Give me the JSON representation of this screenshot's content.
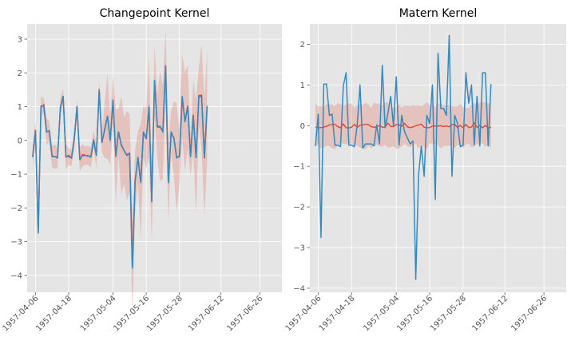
{
  "chart_data": [
    {
      "type": "line",
      "title": "Changepoint Kernel",
      "xlabel": "",
      "ylabel": "",
      "x_range": [
        "1957-04-03",
        "1957-07-04"
      ],
      "ylim": [
        -4.5,
        3.45
      ],
      "yticks": [
        -4,
        -3,
        -2,
        -1,
        0,
        1,
        2,
        3
      ],
      "xticks": [
        "1957-04-06",
        "1957-04-18",
        "1957-05-04",
        "1957-05-16",
        "1957-05-28",
        "1957-06-12",
        "1957-06-26"
      ],
      "grid": true,
      "colors": {
        "observed": "#348abd",
        "mean": "#e24a33",
        "band": "#e24a33"
      },
      "series": [
        {
          "role": "observed",
          "points": [
            [
              "1957-04-05",
              -0.5
            ],
            [
              "1957-04-06",
              0.28
            ],
            [
              "1957-04-07",
              -2.75
            ],
            [
              "1957-04-08",
              1.02
            ],
            [
              "1957-04-09",
              1.02
            ],
            [
              "1957-04-10",
              0.25
            ],
            [
              "1957-04-11",
              0.28
            ],
            [
              "1957-04-12",
              -0.48
            ],
            [
              "1957-04-13",
              -0.48
            ],
            [
              "1957-04-14",
              -0.52
            ],
            [
              "1957-04-15",
              0.98
            ],
            [
              "1957-04-16",
              1.3
            ],
            [
              "1957-04-17",
              -0.48
            ],
            [
              "1957-04-18",
              -0.48
            ],
            [
              "1957-04-19",
              -0.52
            ],
            [
              "1957-04-20",
              0.02
            ],
            [
              "1957-04-21",
              1.0
            ],
            [
              "1957-04-22",
              -0.55
            ],
            [
              "1957-04-23",
              -0.45
            ],
            [
              "1957-04-24",
              -0.45
            ],
            [
              "1957-04-25",
              -0.45
            ],
            [
              "1957-04-26",
              -0.5
            ],
            [
              "1957-04-27",
              0.02
            ],
            [
              "1957-04-28",
              -0.45
            ],
            [
              "1957-04-29",
              1.48
            ],
            [
              "1957-04-30",
              -0.05
            ],
            [
              "1957-05-01",
              0.3
            ],
            [
              "1957-05-02",
              0.72
            ],
            [
              "1957-05-03",
              0.0
            ],
            [
              "1957-05-04",
              1.2
            ],
            [
              "1957-05-05",
              -0.48
            ],
            [
              "1957-05-06",
              0.25
            ],
            [
              "1957-05-07",
              -0.15
            ],
            [
              "1957-05-08",
              -0.3
            ],
            [
              "1957-05-09",
              -0.45
            ],
            [
              "1957-05-10",
              -0.38
            ],
            [
              "1957-05-11",
              -3.78
            ],
            [
              "1957-05-12",
              -1.22
            ],
            [
              "1957-05-13",
              -0.5
            ],
            [
              "1957-05-14",
              -1.25
            ],
            [
              "1957-05-15",
              0.25
            ],
            [
              "1957-05-16",
              0.05
            ],
            [
              "1957-05-17",
              1.0
            ],
            [
              "1957-05-18",
              -1.82
            ],
            [
              "1957-05-19",
              1.78
            ],
            [
              "1957-05-20",
              0.42
            ],
            [
              "1957-05-21",
              0.42
            ],
            [
              "1957-05-22",
              0.25
            ],
            [
              "1957-05-23",
              2.22
            ],
            [
              "1957-05-24",
              -1.25
            ],
            [
              "1957-05-25",
              0.25
            ],
            [
              "1957-05-26",
              0.05
            ],
            [
              "1957-05-27",
              -0.52
            ],
            [
              "1957-05-28",
              -0.48
            ],
            [
              "1957-05-29",
              1.3
            ],
            [
              "1957-05-30",
              0.55
            ],
            [
              "1957-05-31",
              1.0
            ],
            [
              "1957-06-01",
              -0.48
            ],
            [
              "1957-06-02",
              0.72
            ],
            [
              "1957-06-03",
              -0.5
            ],
            [
              "1957-06-04",
              1.3
            ],
            [
              "1957-06-05",
              1.3
            ],
            [
              "1957-06-06",
              -0.5
            ],
            [
              "1957-06-07",
              1.02
            ]
          ]
        }
      ]
    },
    {
      "type": "line",
      "title": "Matern Kernel",
      "xlabel": "",
      "ylabel": "",
      "x_range": [
        "1957-04-03",
        "1957-07-04"
      ],
      "ylim": [
        -4.1,
        2.5
      ],
      "yticks": [
        -4,
        -3,
        -2,
        -1,
        0,
        1,
        2
      ],
      "xticks": [
        "1957-04-06",
        "1957-04-18",
        "1957-05-04",
        "1957-05-16",
        "1957-05-28",
        "1957-06-12",
        "1957-06-26"
      ],
      "grid": true,
      "colors": {
        "observed": "#348abd",
        "mean": "#e24a33",
        "band": "#e24a33"
      },
      "band": [
        -0.58,
        0.58
      ],
      "series": [
        {
          "role": "observed",
          "points": [
            [
              "1957-04-05",
              -0.5
            ],
            [
              "1957-04-06",
              0.28
            ],
            [
              "1957-04-07",
              -2.75
            ],
            [
              "1957-04-08",
              1.02
            ],
            [
              "1957-04-09",
              1.02
            ],
            [
              "1957-04-10",
              0.25
            ],
            [
              "1957-04-11",
              0.28
            ],
            [
              "1957-04-12",
              -0.48
            ],
            [
              "1957-04-13",
              -0.48
            ],
            [
              "1957-04-14",
              -0.52
            ],
            [
              "1957-04-15",
              0.98
            ],
            [
              "1957-04-16",
              1.3
            ],
            [
              "1957-04-17",
              -0.48
            ],
            [
              "1957-04-18",
              -0.48
            ],
            [
              "1957-04-19",
              -0.52
            ],
            [
              "1957-04-20",
              0.02
            ],
            [
              "1957-04-21",
              1.0
            ],
            [
              "1957-04-22",
              -0.55
            ],
            [
              "1957-04-23",
              -0.45
            ],
            [
              "1957-04-24",
              -0.45
            ],
            [
              "1957-04-25",
              -0.45
            ],
            [
              "1957-04-26",
              -0.5
            ],
            [
              "1957-04-27",
              0.02
            ],
            [
              "1957-04-28",
              -0.45
            ],
            [
              "1957-04-29",
              1.48
            ],
            [
              "1957-04-30",
              -0.05
            ],
            [
              "1957-05-01",
              0.3
            ],
            [
              "1957-05-02",
              0.72
            ],
            [
              "1957-05-03",
              0.0
            ],
            [
              "1957-05-04",
              1.2
            ],
            [
              "1957-05-05",
              -0.48
            ],
            [
              "1957-05-06",
              0.25
            ],
            [
              "1957-05-07",
              -0.15
            ],
            [
              "1957-05-08",
              -0.3
            ],
            [
              "1957-05-09",
              -0.45
            ],
            [
              "1957-05-10",
              -0.38
            ],
            [
              "1957-05-11",
              -3.78
            ],
            [
              "1957-05-12",
              -1.22
            ],
            [
              "1957-05-13",
              -0.5
            ],
            [
              "1957-05-14",
              -1.25
            ],
            [
              "1957-05-15",
              0.25
            ],
            [
              "1957-05-16",
              0.05
            ],
            [
              "1957-05-17",
              1.0
            ],
            [
              "1957-05-18",
              -1.82
            ],
            [
              "1957-05-19",
              1.78
            ],
            [
              "1957-05-20",
              0.42
            ],
            [
              "1957-05-21",
              0.42
            ],
            [
              "1957-05-22",
              0.25
            ],
            [
              "1957-05-23",
              2.22
            ],
            [
              "1957-05-24",
              -1.25
            ],
            [
              "1957-05-25",
              0.25
            ],
            [
              "1957-05-26",
              0.05
            ],
            [
              "1957-05-27",
              -0.52
            ],
            [
              "1957-05-28",
              -0.48
            ],
            [
              "1957-05-29",
              1.3
            ],
            [
              "1957-05-30",
              0.55
            ],
            [
              "1957-05-31",
              1.0
            ],
            [
              "1957-06-01",
              -0.48
            ],
            [
              "1957-06-02",
              0.72
            ],
            [
              "1957-06-03",
              -0.5
            ],
            [
              "1957-06-04",
              1.3
            ],
            [
              "1957-06-05",
              1.3
            ],
            [
              "1957-06-06",
              -0.5
            ],
            [
              "1957-06-07",
              1.02
            ]
          ]
        }
      ]
    }
  ]
}
